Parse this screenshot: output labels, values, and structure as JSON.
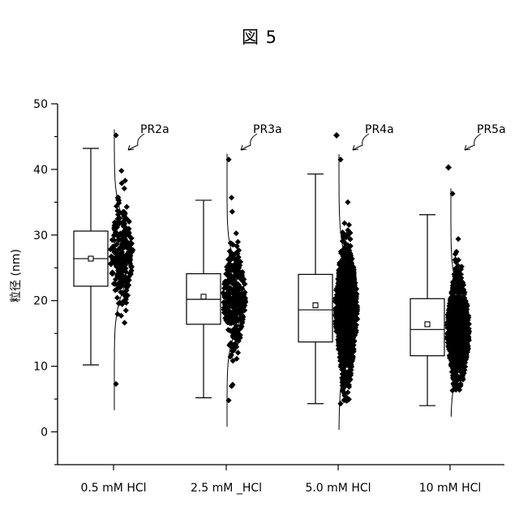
{
  "figure": {
    "title": "図 5"
  },
  "chart_data": {
    "type": "box",
    "ylabel": "粒径 (nm)",
    "ylim": [
      -5,
      50
    ],
    "yticks": [
      0,
      10,
      20,
      30,
      40,
      50
    ],
    "grid": false,
    "categories": [
      "0.5 mM HCl",
      "2.5 mM _HCl",
      "5.0 mM HCl",
      "10 mM HCl"
    ],
    "annotations": [
      "PR2a",
      "PR3a",
      "PR4a",
      "PR5a"
    ],
    "boxes": [
      {
        "whisker_low": 10.2,
        "q1": 22.2,
        "median": 26.4,
        "mean": 26.4,
        "q3": 30.6,
        "whisker_high": 43.2,
        "points_min": 7.3,
        "points_max": 45.2,
        "peak": 27.0,
        "spread": 4.5,
        "n": 260,
        "outliers": []
      },
      {
        "whisker_low": 5.2,
        "q1": 16.4,
        "median": 20.2,
        "mean": 20.6,
        "q3": 24.1,
        "whisker_high": 35.3,
        "points_min": 4.8,
        "points_max": 41.5,
        "peak": 20.5,
        "spread": 4.2,
        "n": 340,
        "outliers": []
      },
      {
        "whisker_low": 4.3,
        "q1": 13.7,
        "median": 18.6,
        "mean": 19.3,
        "q3": 24.0,
        "whisker_high": 39.3,
        "points_min": 4.3,
        "points_max": 41.5,
        "peak": 18.5,
        "spread": 5.5,
        "n": 900,
        "outliers": [
          45.2
        ]
      },
      {
        "whisker_low": 4.0,
        "q1": 11.6,
        "median": 15.6,
        "mean": 16.4,
        "q3": 20.3,
        "whisker_high": 33.1,
        "points_min": 6.3,
        "points_max": 36.3,
        "peak": 15.5,
        "spread": 4.5,
        "n": 800,
        "outliers": [
          40.3
        ]
      }
    ]
  }
}
